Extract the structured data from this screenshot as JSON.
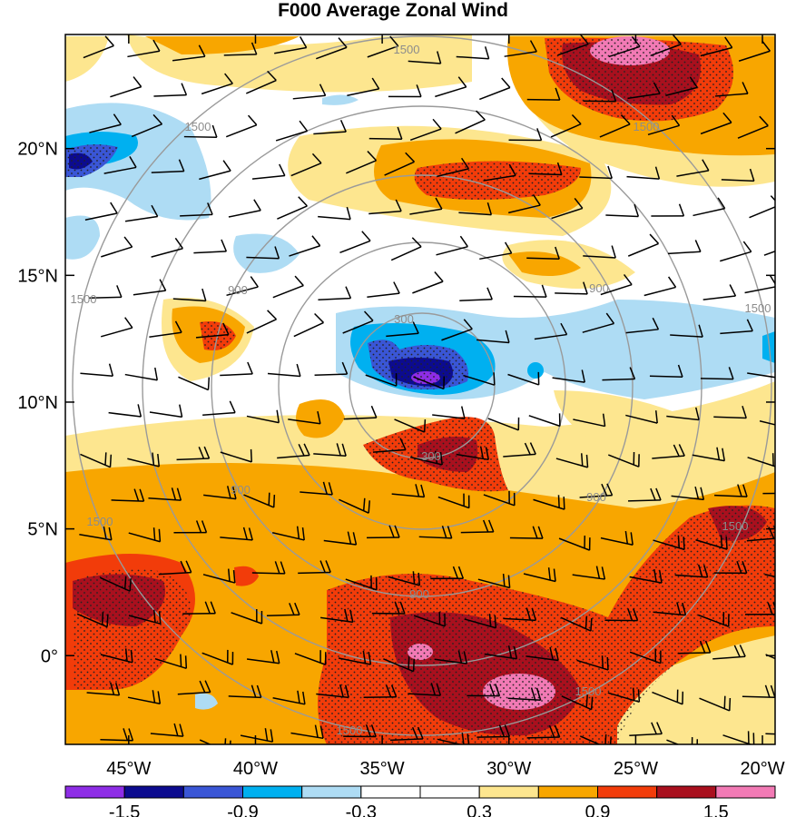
{
  "title": "F000 Average Zonal Wind",
  "map": {
    "lon_labels": [
      "45°W",
      "40°W",
      "35°W",
      "30°W",
      "25°W",
      "20°W"
    ],
    "lon_values": [
      -45,
      -40,
      -35,
      -30,
      -25,
      -20
    ],
    "lat_labels": [
      "0°",
      "5°N",
      "10°N",
      "15°N",
      "20°N"
    ],
    "lat_values": [
      0,
      5,
      10,
      15,
      20
    ],
    "lon_range": [
      -47.5,
      -19.5
    ],
    "lat_range": [
      -3.5,
      24.5
    ],
    "range_ring_labels": [
      "300",
      "900",
      "1500"
    ],
    "range_ring_center": {
      "lon": -33.1,
      "lat": 10.2
    },
    "stippling": "significance dots over strongest anomalies",
    "wind_barbs": "black, over whole domain"
  },
  "colorbar": {
    "colors": [
      "#8e2de6",
      "#0c0b8f",
      "#3a56d6",
      "#00b0f0",
      "#aedcf4",
      "#ffffff",
      "#ffffff",
      "#fde68f",
      "#f8a600",
      "#f23c0a",
      "#a9101e",
      "#f27ab5"
    ],
    "tick_labels": [
      "-1.5",
      "-0.9",
      "-0.3",
      "0.3",
      "0.9",
      "1.5"
    ],
    "tick_values": [
      -1.5,
      -0.9,
      -0.3,
      0.3,
      0.9,
      1.5
    ]
  }
}
